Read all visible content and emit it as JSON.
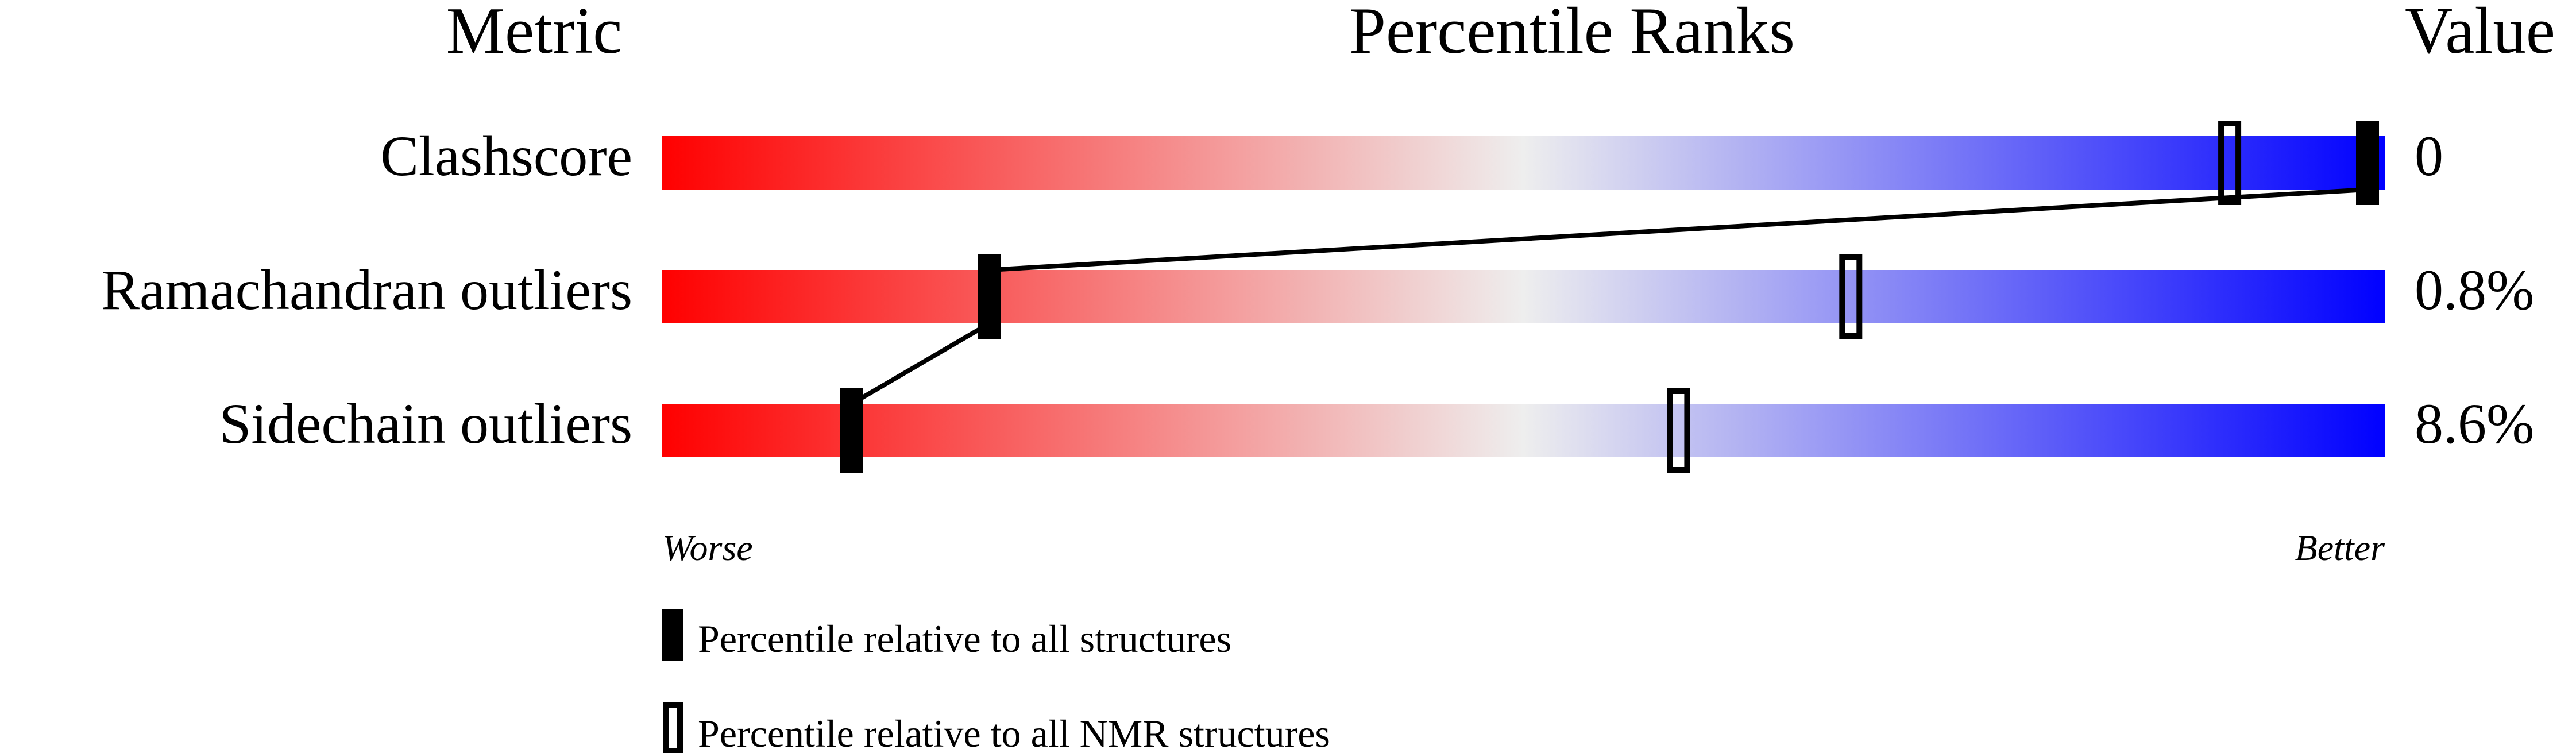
{
  "chart_data": {
    "type": "percentile-bars",
    "headers": {
      "metric": "Metric",
      "ranks": "Percentile Ranks",
      "value": "Value"
    },
    "xlim": [
      0,
      100
    ],
    "axis_ends": {
      "left": "Worse",
      "right": "Better"
    },
    "gradient_colors": {
      "worse": "#ff0000",
      "middle": "#eeeeee",
      "better": "#0000ff"
    },
    "rows": [
      {
        "metric": "Clashscore",
        "value": "0",
        "percentile_all": 99,
        "percentile_nmr": 91
      },
      {
        "metric": "Ramachandran outliers",
        "value": "0.8%",
        "percentile_all": 19,
        "percentile_nmr": 69
      },
      {
        "metric": "Sidechain outliers",
        "value": "8.6%",
        "percentile_all": 11,
        "percentile_nmr": 59
      }
    ],
    "legend": [
      {
        "marker": "filled",
        "label": "Percentile relative to all structures"
      },
      {
        "marker": "open",
        "label": "Percentile relative to all NMR structures"
      }
    ]
  }
}
